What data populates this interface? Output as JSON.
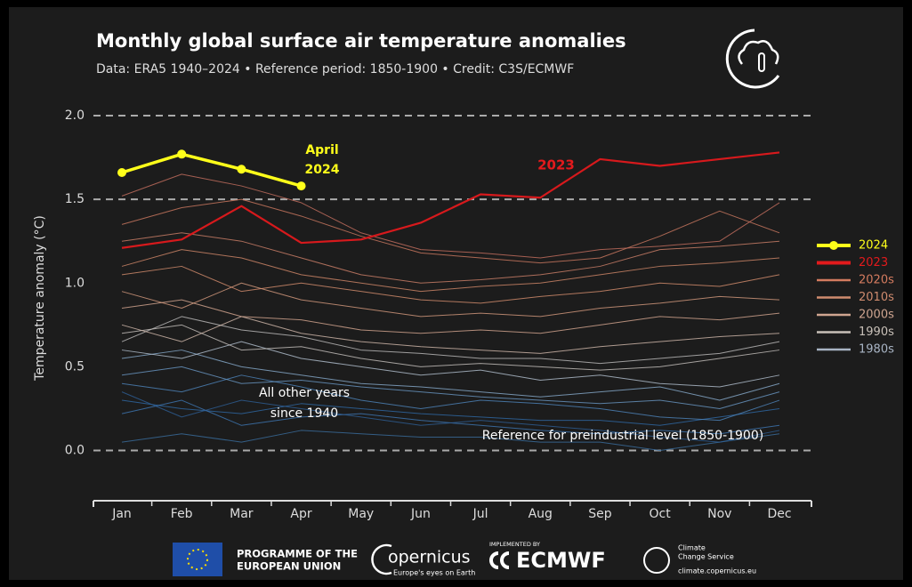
{
  "chart_data": {
    "type": "line",
    "title": "Monthly global surface air temperature anomalies",
    "subtitle": "Data: ERA5 1940–2024 • Reference period: 1850-1900 • Credit: C3S/ECMWF",
    "ylabel": "Temperature anomaly (°C)",
    "categories": [
      "Jan",
      "Feb",
      "Mar",
      "Apr",
      "May",
      "Jun",
      "Jul",
      "Aug",
      "Sep",
      "Oct",
      "Nov",
      "Dec"
    ],
    "ylim": [
      -0.3,
      2.0
    ],
    "yticks": [
      {
        "value": 0,
        "label": "0.0"
      },
      0.5,
      {
        "value": 1,
        "label": "1.0"
      },
      1.5,
      {
        "value": 2,
        "label": "2.0"
      }
    ],
    "reference_lines": [
      0,
      1.5,
      2
    ],
    "series": [
      {
        "color": "#2f6aa8",
        "values": [
          0.3,
          0.25,
          0.22,
          0.28,
          0.25,
          0.22,
          0.2,
          0.18,
          0.18,
          0.15,
          0.2,
          0.25
        ]
      },
      {
        "color": "#3b6fa0",
        "values": [
          0.05,
          0.1,
          0.05,
          0.12,
          0.1,
          0.08,
          0.08,
          0.05,
          0.05,
          0.0,
          0.05,
          0.1
        ]
      },
      {
        "color": "#4f86bd",
        "values": [
          0.4,
          0.35,
          0.45,
          0.38,
          0.3,
          0.25,
          0.3,
          0.28,
          0.25,
          0.2,
          0.18,
          0.3
        ]
      },
      {
        "color": "#3f78b5",
        "values": [
          0.22,
          0.3,
          0.15,
          0.2,
          0.22,
          0.18,
          0.15,
          0.12,
          0.1,
          0.12,
          0.1,
          0.15
        ]
      },
      {
        "color": "#6a98c6",
        "values": [
          0.45,
          0.5,
          0.4,
          0.42,
          0.38,
          0.35,
          0.32,
          0.3,
          0.28,
          0.3,
          0.25,
          0.35
        ]
      },
      {
        "color": "#8aaed0",
        "values": [
          0.55,
          0.6,
          0.5,
          0.45,
          0.4,
          0.38,
          0.35,
          0.32,
          0.35,
          0.38,
          0.3,
          0.4
        ]
      },
      {
        "color": "#2e5f96",
        "values": [
          0.35,
          0.2,
          0.3,
          0.25,
          0.2,
          0.15,
          0.18,
          0.15,
          0.12,
          0.08,
          0.05,
          0.12
        ]
      },
      {
        "color": "#b5c3d2",
        "values": [
          0.6,
          0.55,
          0.65,
          0.55,
          0.5,
          0.45,
          0.48,
          0.42,
          0.45,
          0.4,
          0.38,
          0.45
        ]
      },
      {
        "color": "#c0bfbf",
        "values": [
          0.65,
          0.8,
          0.72,
          0.68,
          0.6,
          0.58,
          0.55,
          0.55,
          0.52,
          0.55,
          0.58,
          0.65
        ]
      },
      {
        "color": "#c9c4c0",
        "values": [
          0.7,
          0.75,
          0.6,
          0.62,
          0.55,
          0.5,
          0.52,
          0.5,
          0.48,
          0.5,
          0.55,
          0.6
        ]
      },
      {
        "color": "#d5bcae",
        "values": [
          0.75,
          0.65,
          0.8,
          0.7,
          0.65,
          0.62,
          0.6,
          0.58,
          0.62,
          0.65,
          0.68,
          0.7
        ]
      },
      {
        "color": "#d8a992",
        "values": [
          0.85,
          0.9,
          0.8,
          0.78,
          0.72,
          0.7,
          0.72,
          0.7,
          0.75,
          0.8,
          0.78,
          0.82
        ]
      },
      {
        "color": "#d89c80",
        "values": [
          0.95,
          0.85,
          1.0,
          0.9,
          0.85,
          0.8,
          0.82,
          0.8,
          0.85,
          0.88,
          0.92,
          0.9
        ]
      },
      {
        "color": "#d8906f",
        "values": [
          1.05,
          1.1,
          0.95,
          1.0,
          0.95,
          0.9,
          0.88,
          0.92,
          0.95,
          1.0,
          0.98,
          1.05
        ]
      },
      {
        "color": "#d48a6a",
        "values": [
          1.1,
          1.2,
          1.15,
          1.05,
          1.0,
          0.95,
          0.98,
          1.0,
          1.05,
          1.1,
          1.12,
          1.15
        ]
      },
      {
        "color": "#d1826a",
        "values": [
          1.25,
          1.3,
          1.25,
          1.15,
          1.05,
          1.0,
          1.02,
          1.05,
          1.1,
          1.2,
          1.22,
          1.25
        ]
      },
      {
        "color": "#cf7a62",
        "values": [
          1.35,
          1.45,
          1.5,
          1.4,
          1.28,
          1.18,
          1.15,
          1.12,
          1.15,
          1.28,
          1.43,
          1.3
        ]
      },
      {
        "color": "#c87060",
        "values": [
          1.52,
          1.65,
          1.58,
          1.48,
          1.3,
          1.2,
          1.18,
          1.15,
          1.2,
          1.22,
          1.25,
          1.48
        ]
      },
      {
        "name": "2023",
        "color": "#d7191c",
        "linewidth": 2.2,
        "values": [
          1.21,
          1.26,
          1.46,
          1.24,
          1.26,
          1.36,
          1.53,
          1.51,
          1.74,
          1.7,
          1.74,
          1.78
        ]
      },
      {
        "name": "2024",
        "color": "#ffff1a",
        "linewidth": 3.5,
        "markers": true,
        "values": [
          1.66,
          1.77,
          1.68,
          1.58,
          null,
          null,
          null,
          null,
          null,
          null,
          null,
          null
        ]
      }
    ],
    "legend": [
      {
        "name": "2024",
        "color": "#ffff1a",
        "markers": true
      },
      {
        "name": "2023",
        "color": "#e31a1c"
      },
      {
        "name": "2020s",
        "color": "#d47b5f"
      },
      {
        "name": "2010s",
        "color": "#cf8b6e"
      },
      {
        "name": "2000s",
        "color": "#cfa590"
      },
      {
        "name": "1990s",
        "color": "#c8c0b8"
      },
      {
        "name": "1980s",
        "color": "#a8b4c4"
      }
    ],
    "annotations": [
      {
        "lines": [
          "April",
          "2024"
        ]
      },
      {
        "lines": [
          "2023"
        ]
      },
      {
        "lines": [
          "All other years",
          "since 1940"
        ]
      },
      {
        "lines": [
          "Reference for preindustrial level (1850-1900)"
        ]
      }
    ]
  },
  "footer": {
    "eu": [
      "PROGRAMME OF THE",
      "EUROPEAN UNION"
    ],
    "copernicus": "opernicus",
    "copernicus_tagline": "Europe's eyes on Earth",
    "implemented_by": "IMPLEMENTED BY",
    "ecmwf": "ECMWF",
    "c3s": [
      "Climate",
      "Change Service"
    ],
    "c3s_url": "climate.copernicus.eu"
  }
}
